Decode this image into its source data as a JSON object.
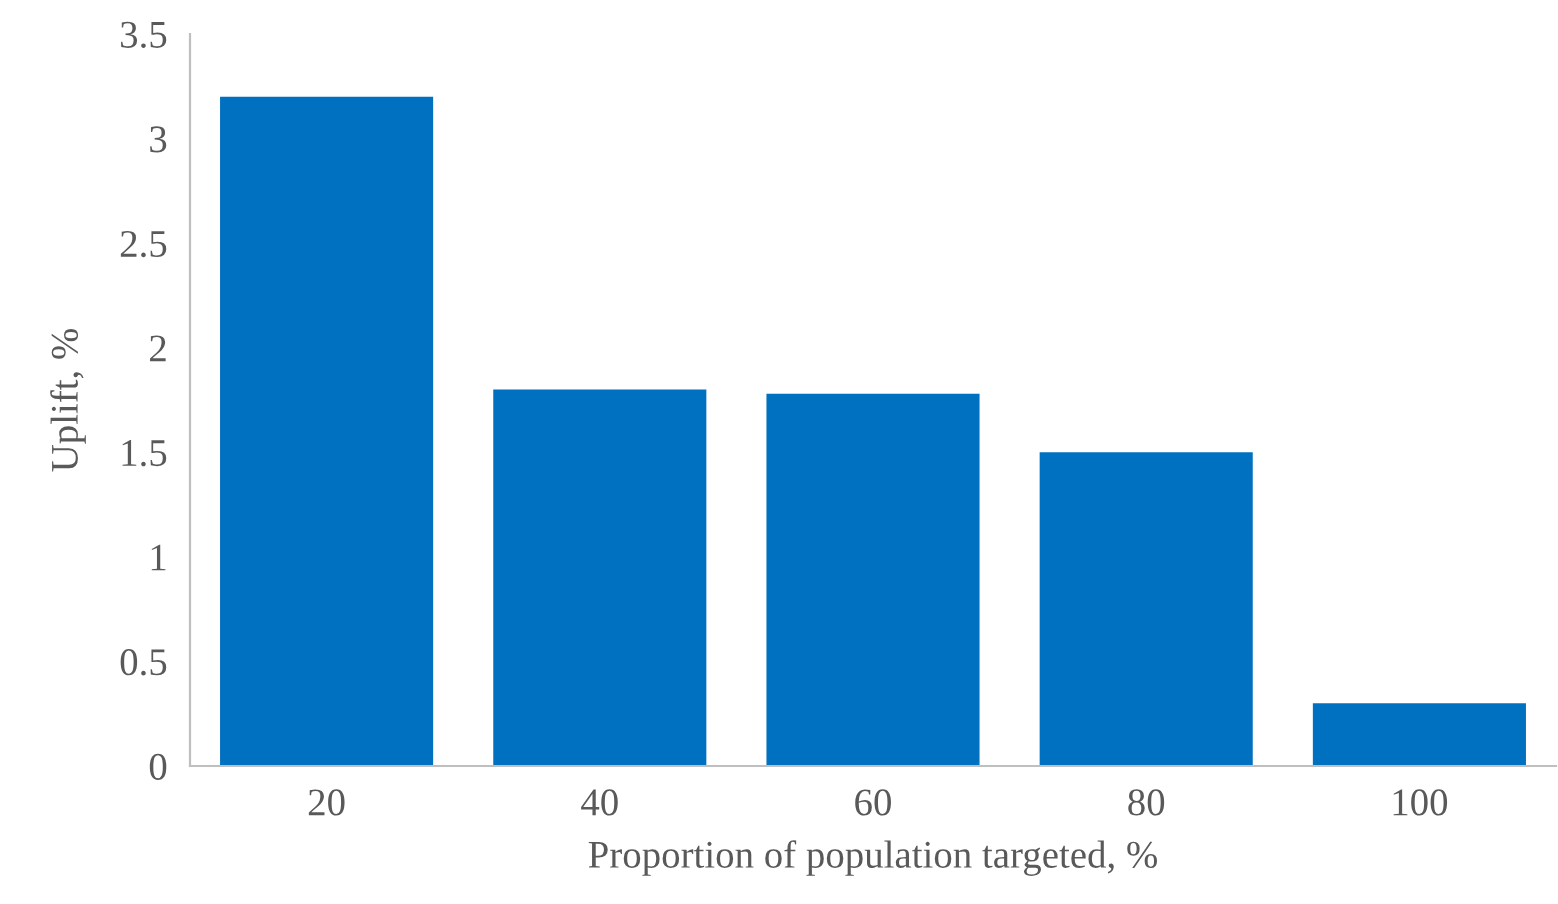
{
  "chart_data": {
    "type": "bar",
    "xlabel": "Proportion of population targeted, %",
    "ylabel": "Uplift, %",
    "categories": [
      "20",
      "40",
      "60",
      "80",
      "100"
    ],
    "values": [
      3.2,
      1.8,
      1.78,
      1.5,
      0.3
    ],
    "color": "#0070c0",
    "ylim": [
      0,
      3.5
    ],
    "yticks": [
      0,
      0.5,
      1,
      1.5,
      2,
      2.5,
      3,
      3.5
    ],
    "grid": false,
    "legend": false
  }
}
